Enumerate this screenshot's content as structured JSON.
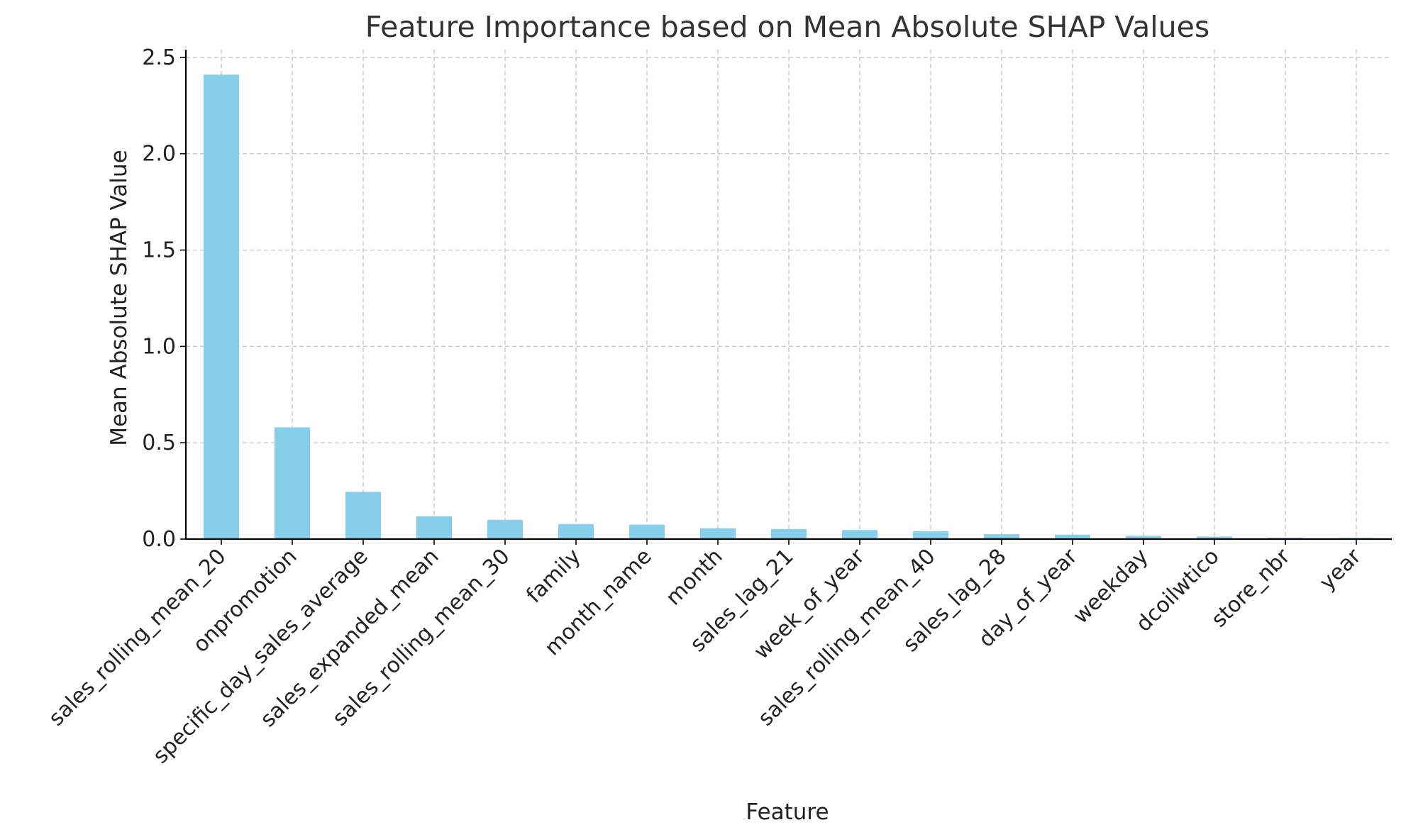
{
  "chart_data": {
    "type": "bar",
    "title": "Feature Importance based on Mean Absolute SHAP Values",
    "xlabel": "Feature",
    "ylabel": "Mean Absolute SHAP Value",
    "categories": [
      "sales_rolling_mean_20",
      "onpromotion",
      "specific_day_sales_average",
      "sales_expanded_mean",
      "sales_rolling_mean_30",
      "family",
      "month_name",
      "month",
      "sales_lag_21",
      "week_of_year",
      "sales_rolling_mean_40",
      "sales_lag_28",
      "day_of_year",
      "weekday",
      "dcoilwtico",
      "store_nbr",
      "year"
    ],
    "values": [
      2.41,
      0.58,
      0.245,
      0.118,
      0.1,
      0.078,
      0.075,
      0.056,
      0.052,
      0.047,
      0.04,
      0.025,
      0.023,
      0.017,
      0.013,
      0.007,
      0.006
    ],
    "ylim": [
      0,
      2.54
    ],
    "yticks": [
      0.0,
      0.5,
      1.0,
      1.5,
      2.0,
      2.5
    ],
    "ytick_labels": [
      "0.0",
      "0.5",
      "1.0",
      "1.5",
      "2.0",
      "2.5"
    ],
    "grid": true,
    "bar_color": "#87ceeb"
  }
}
